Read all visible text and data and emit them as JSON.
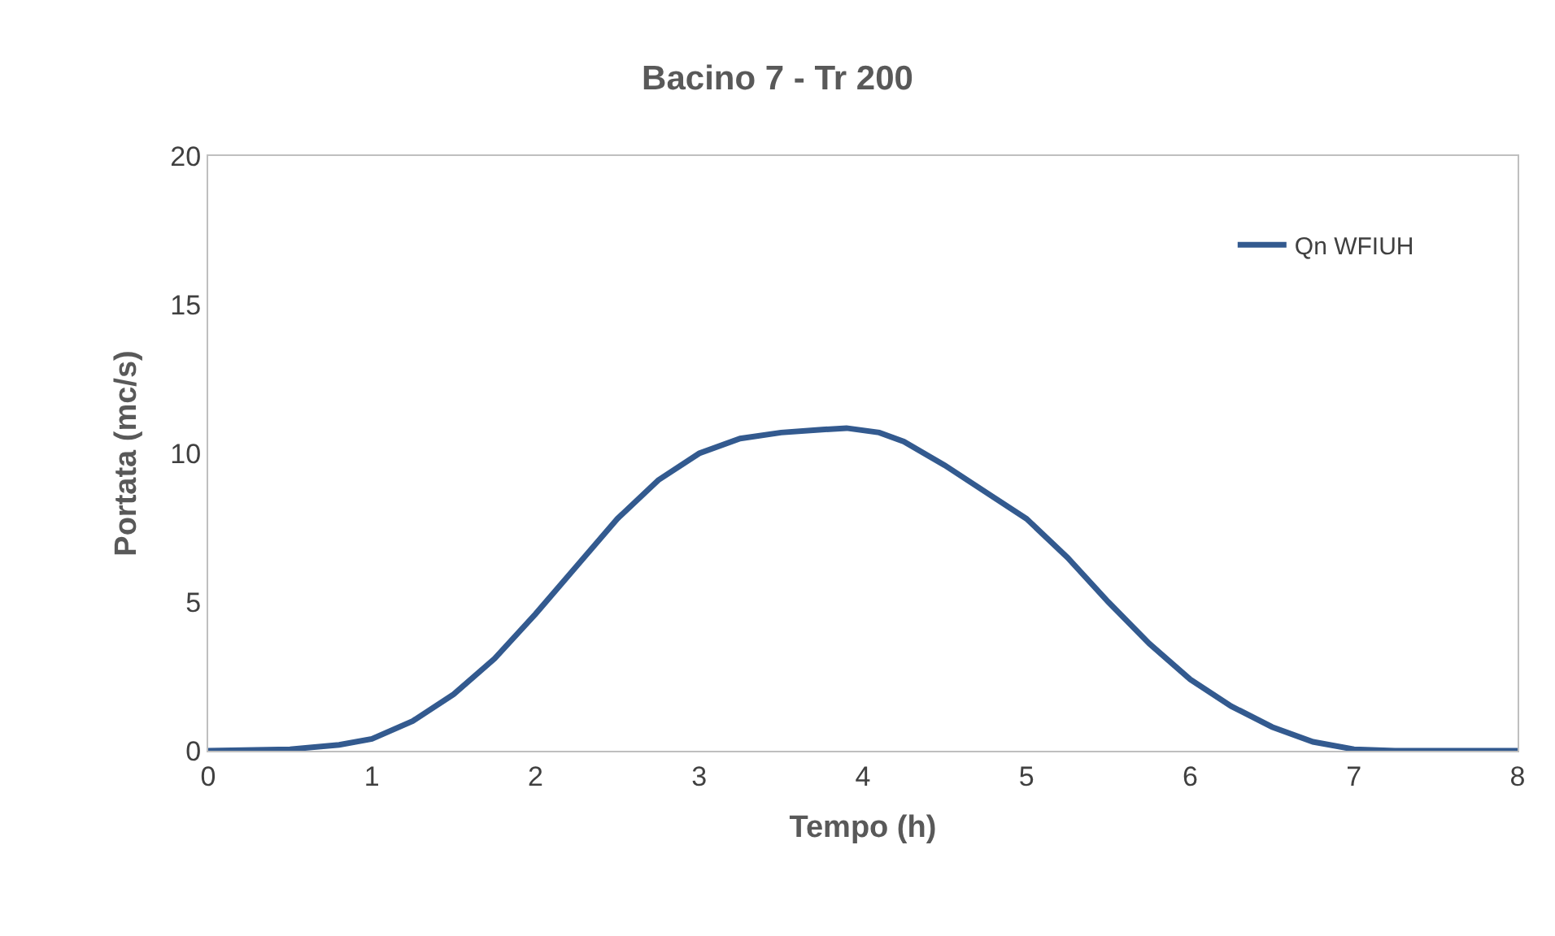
{
  "chart_data": {
    "type": "line",
    "title": "Bacino 7 - Tr 200",
    "xlabel": "Tempo (h)",
    "ylabel": "Portata (mc/s)",
    "x": [
      0,
      0.5,
      0.8,
      1.0,
      1.25,
      1.5,
      1.75,
      2.0,
      2.25,
      2.5,
      2.75,
      3.0,
      3.25,
      3.5,
      3.75,
      3.9,
      4.1,
      4.25,
      4.5,
      4.75,
      5.0,
      5.25,
      5.5,
      5.75,
      6.0,
      6.25,
      6.5,
      6.75,
      7.0,
      7.25,
      8.0
    ],
    "series": [
      {
        "name": "Qn WFIUH",
        "color": "#335a8f",
        "values": [
          0,
          0.05,
          0.2,
          0.4,
          1.0,
          1.9,
          3.1,
          4.6,
          6.2,
          7.8,
          9.1,
          10.0,
          10.5,
          10.7,
          10.8,
          10.85,
          10.7,
          10.4,
          9.6,
          8.7,
          7.8,
          6.5,
          5.0,
          3.6,
          2.4,
          1.5,
          0.8,
          0.3,
          0.05,
          0,
          0
        ]
      }
    ],
    "xlim": [
      0,
      8
    ],
    "xticks": [
      0,
      1,
      2,
      3,
      4,
      5,
      6,
      7,
      8
    ],
    "ylim": [
      0,
      20
    ],
    "yticks": [
      0,
      5,
      10,
      15,
      20
    ],
    "legend": "top right",
    "marker": "none",
    "line_style": "solid"
  }
}
